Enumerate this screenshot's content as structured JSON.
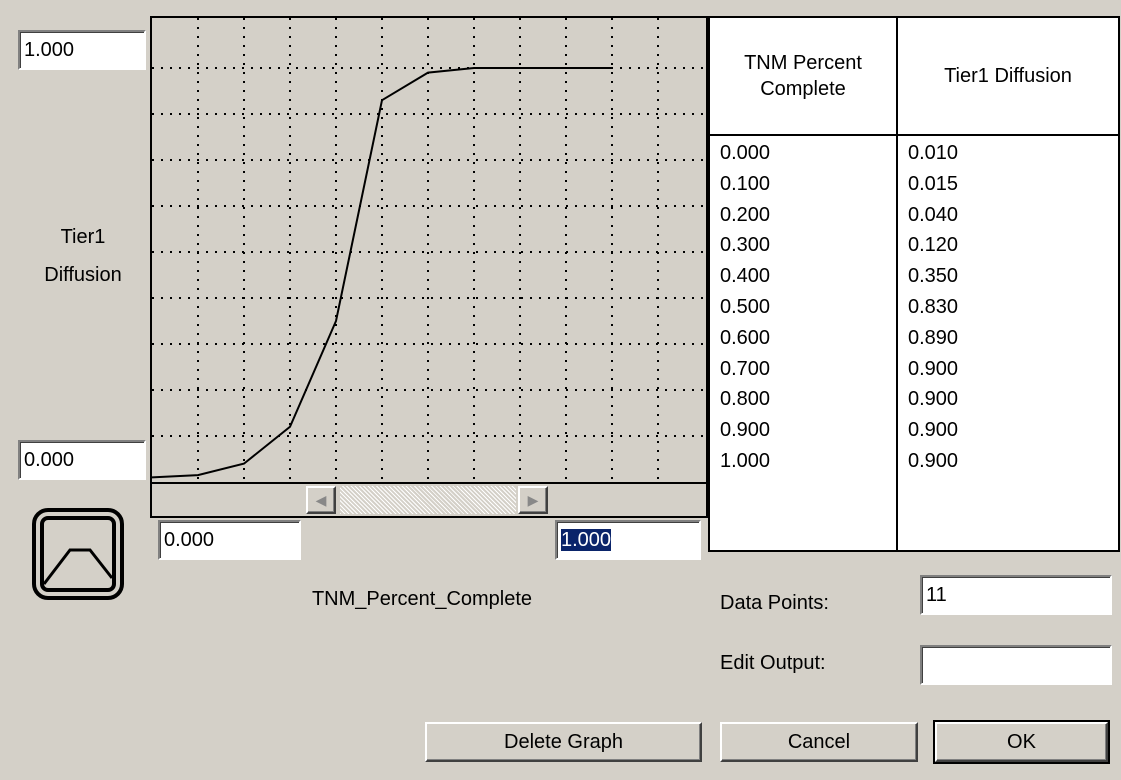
{
  "graph": {
    "y_max_field": "1.000",
    "y_min_field": "0.000",
    "y_label": "Tier1 Diffusion",
    "x_min_field": "0.000",
    "x_max_field": "1.000",
    "x_label": "TNM_Percent_Complete",
    "x": [
      0,
      0.1,
      0.2,
      0.3,
      0.4,
      0.5,
      0.6,
      0.7,
      0.8,
      0.9,
      1.0
    ],
    "values": [
      0.01,
      0.015,
      0.04,
      0.12,
      0.35,
      0.83,
      0.89,
      0.9,
      0.9,
      0.9,
      0.9
    ],
    "xlim": [
      0,
      1.2
    ],
    "ylim": [
      0,
      1
    ],
    "xticks": [
      0.1,
      0.2,
      0.3,
      0.4,
      0.5,
      0.6,
      0.7,
      0.8,
      0.9,
      1.0,
      1.1
    ],
    "yticks": [
      0.1,
      0.2,
      0.3,
      0.4,
      0.5,
      0.6,
      0.7,
      0.8,
      0.9
    ]
  },
  "table": {
    "headers": [
      "TNM Percent Complete",
      "Tier1 Diffusion"
    ],
    "rows": [
      [
        "0.000",
        "0.010"
      ],
      [
        "0.100",
        "0.015"
      ],
      [
        "0.200",
        "0.040"
      ],
      [
        "0.300",
        "0.120"
      ],
      [
        "0.400",
        "0.350"
      ],
      [
        "0.500",
        "0.830"
      ],
      [
        "0.600",
        "0.890"
      ],
      [
        "0.700",
        "0.900"
      ],
      [
        "0.800",
        "0.900"
      ],
      [
        "0.900",
        "0.900"
      ],
      [
        "1.000",
        "0.900"
      ]
    ]
  },
  "fields": {
    "data_points_label": "Data Points:",
    "data_points": "11",
    "edit_output_label": "Edit Output:",
    "edit_output": ""
  },
  "buttons": {
    "delete": "Delete Graph",
    "cancel": "Cancel",
    "ok": "OK"
  }
}
